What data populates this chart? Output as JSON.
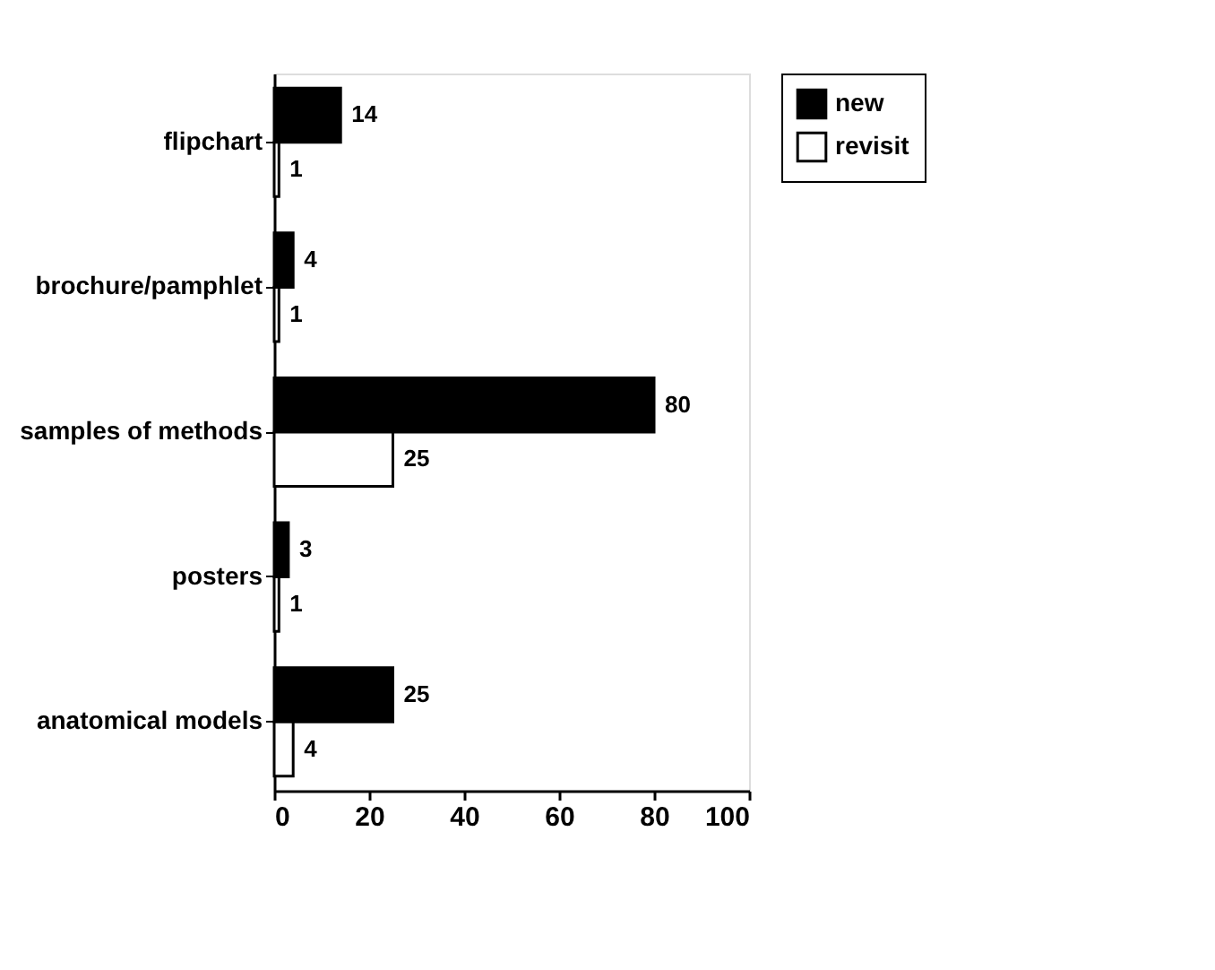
{
  "chart_data": {
    "type": "bar",
    "orientation": "horizontal",
    "categories": [
      "flipchart",
      "brochure/pamphlet",
      "samples of methods",
      "posters",
      "anatomical models"
    ],
    "series": [
      {
        "name": "new",
        "color": "#000000",
        "values": [
          14,
          4,
          80,
          3,
          25
        ]
      },
      {
        "name": "revisit",
        "color": "#ffffff",
        "values": [
          1,
          1,
          25,
          1,
          4
        ]
      }
    ],
    "xlim": [
      0,
      100
    ],
    "xticks": [
      0,
      20,
      40,
      60,
      80,
      100
    ],
    "grid": false,
    "legend": "right",
    "data_labels": true
  }
}
